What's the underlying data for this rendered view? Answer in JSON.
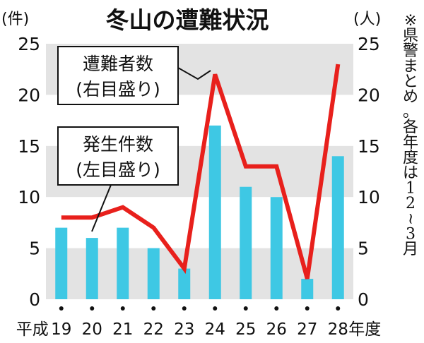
{
  "chart_data": {
    "type": "bar+line",
    "title": "冬山の遭難状況",
    "categories": [
      "19",
      "20",
      "21",
      "22",
      "23",
      "24",
      "25",
      "26",
      "27",
      "28"
    ],
    "category_prefix": "平成",
    "category_suffix": "年度",
    "series": [
      {
        "name": "発生件数",
        "axis": "left",
        "kind": "bar",
        "values": [
          7,
          6,
          7,
          5,
          3,
          17,
          11,
          10,
          2,
          14
        ]
      },
      {
        "name": "遭難者数",
        "axis": "right",
        "kind": "line",
        "values": [
          8,
          8,
          9,
          7,
          3,
          22,
          13,
          13,
          2,
          23
        ]
      }
    ],
    "left_axis": {
      "unit": "(件)",
      "range": [
        0,
        25
      ],
      "ticks": [
        "0",
        "5",
        "10",
        "15",
        "20",
        "25"
      ]
    },
    "right_axis": {
      "unit": "(人)",
      "range": [
        0,
        25
      ],
      "ticks": [
        "0",
        "5",
        "10",
        "15",
        "20",
        "25"
      ]
    },
    "annotations": [
      {
        "lines": [
          "遭難者数",
          "(右目盛り)"
        ],
        "target": "line"
      },
      {
        "lines": [
          "発生件数",
          "(左目盛り)"
        ],
        "target": "bar"
      }
    ],
    "note": "※県警まとめ。各年度は12~3月",
    "colors": {
      "bar": "#3ec8e4",
      "line": "#e8201c",
      "band": "#e3e3e3"
    },
    "grid": false,
    "legend": "none"
  }
}
